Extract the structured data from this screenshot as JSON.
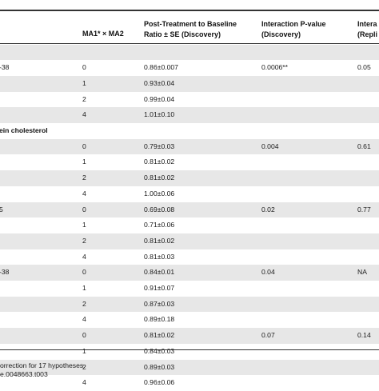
{
  "table": {
    "headers": {
      "ma": "MA1* × MA2",
      "ratio_line1": "Post-Treatment to Baseline",
      "ratio_line2": "Ratio ± SE (Discovery)",
      "pd_line1": "Interaction P-value",
      "pd_line2": "(Discovery)",
      "pr_line1": "Intera",
      "pr_line2": "(Repli"
    },
    "rows": [
      {
        "label": "",
        "ma": "",
        "ratio": "",
        "pd": "",
        "pr": "",
        "shade": true
      },
      {
        "label": "-38",
        "ma": "0",
        "ratio": "0.86±0.007",
        "pd": "0.0006**",
        "pr": "0.05",
        "shade": false
      },
      {
        "label": "",
        "ma": "1",
        "ratio": "0.93±0.04",
        "pd": "",
        "pr": "",
        "shade": true
      },
      {
        "label": "",
        "ma": "2",
        "ratio": "0.99±0.04",
        "pd": "",
        "pr": "",
        "shade": false
      },
      {
        "label": "",
        "ma": "4",
        "ratio": "1.01±0.10",
        "pd": "",
        "pr": "",
        "shade": true
      },
      {
        "label": "ein cholesterol",
        "ma": "",
        "ratio": "",
        "pd": "",
        "pr": "",
        "shade": false,
        "group": true
      },
      {
        "label": "",
        "ma": "0",
        "ratio": "0.79±0.03",
        "pd": "0.004",
        "pr": "0.61",
        "shade": true
      },
      {
        "label": "",
        "ma": "1",
        "ratio": "0.81±0.02",
        "pd": "",
        "pr": "",
        "shade": false
      },
      {
        "label": "",
        "ma": "2",
        "ratio": "0.81±0.02",
        "pd": "",
        "pr": "",
        "shade": true
      },
      {
        "label": "",
        "ma": "4",
        "ratio": "1.00±0.06",
        "pd": "",
        "pr": "",
        "shade": false
      },
      {
        "label": "5",
        "ma": "0",
        "ratio": "0.69±0.08",
        "pd": "0.02",
        "pr": "0.77",
        "shade": true
      },
      {
        "label": "",
        "ma": "1",
        "ratio": "0.71±0.06",
        "pd": "",
        "pr": "",
        "shade": false
      },
      {
        "label": "",
        "ma": "2",
        "ratio": "0.81±0.02",
        "pd": "",
        "pr": "",
        "shade": true
      },
      {
        "label": "",
        "ma": "4",
        "ratio": "0.81±0.03",
        "pd": "",
        "pr": "",
        "shade": false
      },
      {
        "label": "-38",
        "ma": "0",
        "ratio": "0.84±0.01",
        "pd": "0.04",
        "pr": "NA",
        "shade": true
      },
      {
        "label": "",
        "ma": "1",
        "ratio": "0.91±0.07",
        "pd": "",
        "pr": "",
        "shade": false
      },
      {
        "label": "",
        "ma": "2",
        "ratio": "0.87±0.03",
        "pd": "",
        "pr": "",
        "shade": true
      },
      {
        "label": "",
        "ma": "4",
        "ratio": "0.89±0.18",
        "pd": "",
        "pr": "",
        "shade": false
      },
      {
        "label": "",
        "ma": "0",
        "ratio": "0.81±0.02",
        "pd": "0.07",
        "pr": "0.14",
        "shade": true
      },
      {
        "label": "",
        "ma": "1",
        "ratio": "0.84±0.03",
        "pd": "",
        "pr": "",
        "shade": false
      },
      {
        "label": "",
        "ma": "2",
        "ratio": "0.89±0.03",
        "pd": "",
        "pr": "",
        "shade": true
      },
      {
        "label": "",
        "ma": "4",
        "ratio": "0.96±0.06",
        "pd": "",
        "pr": "",
        "shade": false
      }
    ]
  },
  "footnotes": {
    "line1": "orrection for 17 hypotheses.",
    "line2": "e.0048663.t003"
  }
}
